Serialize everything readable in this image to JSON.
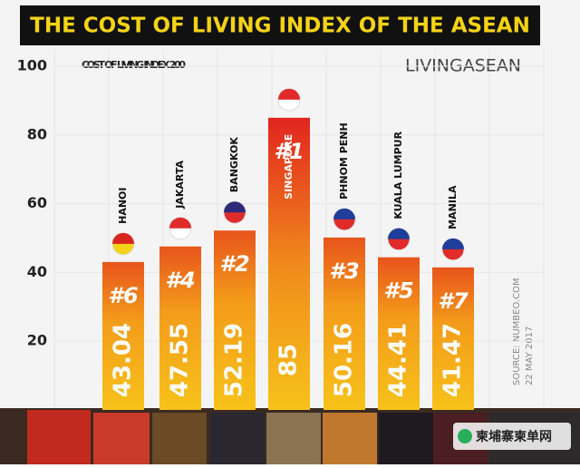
{
  "chart_data": {
    "type": "bar",
    "title": "THE COST OF LIVING INDEX OF THE ASEAN",
    "subtitle": "COST OF LIVING INDEX 200",
    "logo": "LIVINGASEAN",
    "source": "SOURCE: NUMBEO.COM",
    "date": "22 MAY 2017",
    "watermark": "柬埔寨柬单网",
    "categories": [
      "HANOI",
      "JAKARTA",
      "BANGKOK",
      "SINGAPORE",
      "PHNOM PENH",
      "KUALA LUMPUR",
      "MANILA"
    ],
    "ranks": [
      "#6",
      "#4",
      "#2",
      "#1",
      "#3",
      "#5",
      "#7"
    ],
    "values": [
      43.04,
      47.55,
      52.19,
      85,
      50.16,
      44.41,
      41.47
    ],
    "ylim": [
      0,
      100
    ],
    "yticks": [
      20,
      40,
      60,
      80,
      100
    ],
    "grid": true
  }
}
